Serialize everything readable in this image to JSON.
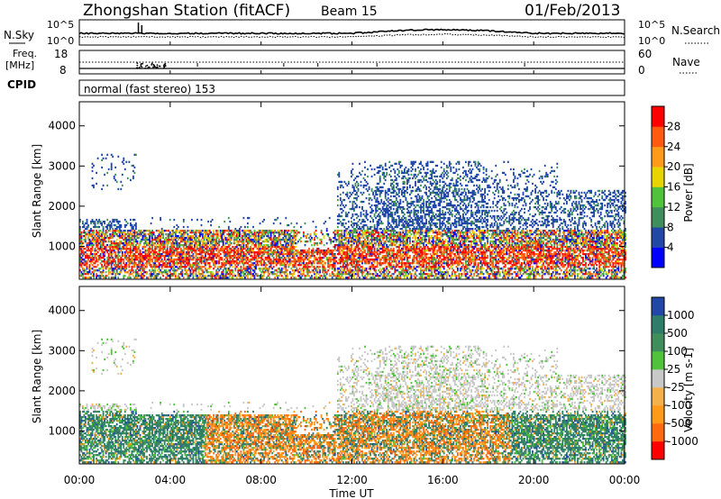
{
  "header": {
    "station": "Zhongshan Station (fitACF)",
    "beam": "Beam 15",
    "date": "01/Feb/2013"
  },
  "nsky_panel": {
    "left_label": "N.Sky",
    "right_label": "N.Search",
    "left_ticks": [
      "10^5",
      "10^0"
    ],
    "right_ticks": [
      "10^5",
      "10^0"
    ]
  },
  "freq_panel": {
    "left_label_top": "Freq.",
    "left_label_unit": "[MHz]",
    "left_ticks": [
      "18",
      "8"
    ],
    "right_label": "Nave",
    "right_ticks": [
      "60",
      "0"
    ]
  },
  "cpid": {
    "label": "CPID",
    "text": "normal (fast stereo) 153"
  },
  "chart_data": [
    {
      "type": "heatmap",
      "name": "Power",
      "ylabel": "Slant Range [km]",
      "xlabel": "Time UT",
      "x_ticks": [
        "00:00",
        "04:00",
        "08:00",
        "12:00",
        "16:00",
        "20:00",
        "00:00"
      ],
      "y_ticks": [
        "1000",
        "2000",
        "3000",
        "4000"
      ],
      "ylim": [
        180,
        4600
      ],
      "colorbar_label": "Power [dB]",
      "colorbar_ticks": [
        "28",
        "24",
        "20",
        "16",
        "12",
        "8",
        "4"
      ],
      "colorbar_colors": [
        "#0000ff",
        "#2147a8",
        "#3f8f5d",
        "#4fc43a",
        "#e8d400",
        "#ff9a1a",
        "#ff5a10",
        "#ff0000"
      ]
    },
    {
      "type": "heatmap",
      "name": "Velocity",
      "ylabel": "Slant Range [km]",
      "xlabel": "Time UT",
      "x_ticks": [
        "00:00",
        "04:00",
        "08:00",
        "12:00",
        "16:00",
        "20:00",
        "00:00"
      ],
      "y_ticks": [
        "1000",
        "2000",
        "3000",
        "4000"
      ],
      "ylim": [
        180,
        4600
      ],
      "colorbar_label": "Velocity [m s-1]",
      "colorbar_ticks": [
        "1000",
        "500",
        "100",
        "25",
        "-25",
        "-100",
        "-500",
        "-1000"
      ],
      "colorbar_colors": [
        "#ff0000",
        "#ff6a10",
        "#ff9a1a",
        "#f4b04a",
        "#c8c8c8",
        "#4fc43a",
        "#3f8f5d",
        "#2e7d6a",
        "#2147a8"
      ]
    }
  ],
  "x_axis": {
    "ticks": [
      "00:00",
      "04:00",
      "08:00",
      "12:00",
      "16:00",
      "20:00",
      "00:00"
    ],
    "label": "Time UT"
  }
}
